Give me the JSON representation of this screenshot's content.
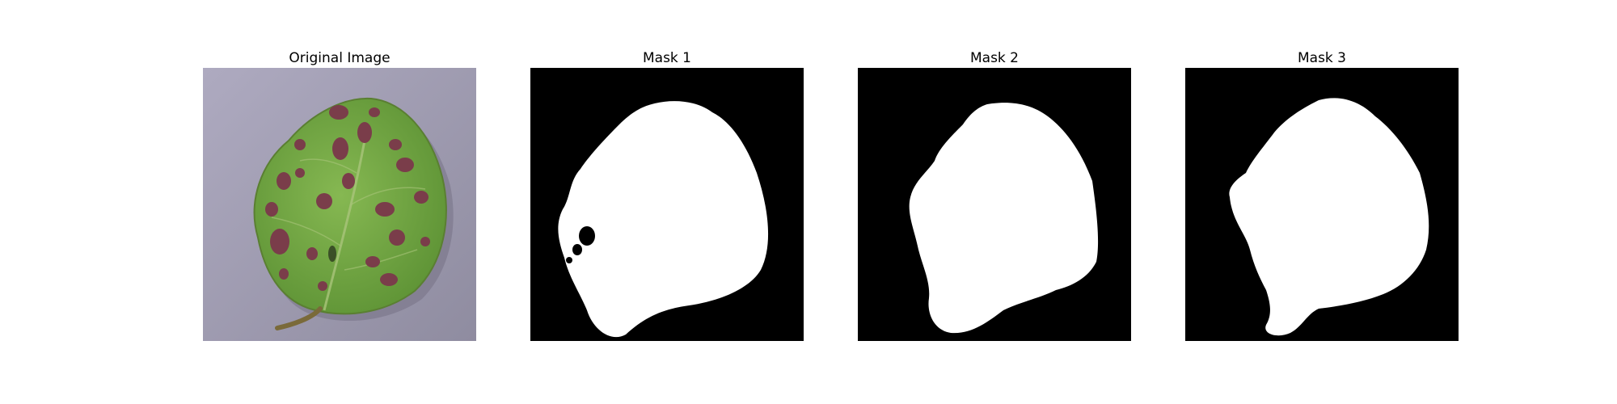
{
  "figure": {
    "panels": [
      {
        "title": "Original Image",
        "kind": "photo",
        "subject": "leaf-with-spots"
      },
      {
        "title": "Mask 1",
        "kind": "mask"
      },
      {
        "title": "Mask 2",
        "kind": "mask"
      },
      {
        "title": "Mask 3",
        "kind": "mask"
      }
    ]
  },
  "colors": {
    "photo_background": "#a8a4b8",
    "leaf_green": "#7cae4a",
    "leaf_dark_green": "#5f8f35",
    "spot_purple": "#7a3d4a",
    "stem_brown": "#7a6a3a",
    "mask_background": "#000000",
    "mask_foreground": "#ffffff"
  }
}
